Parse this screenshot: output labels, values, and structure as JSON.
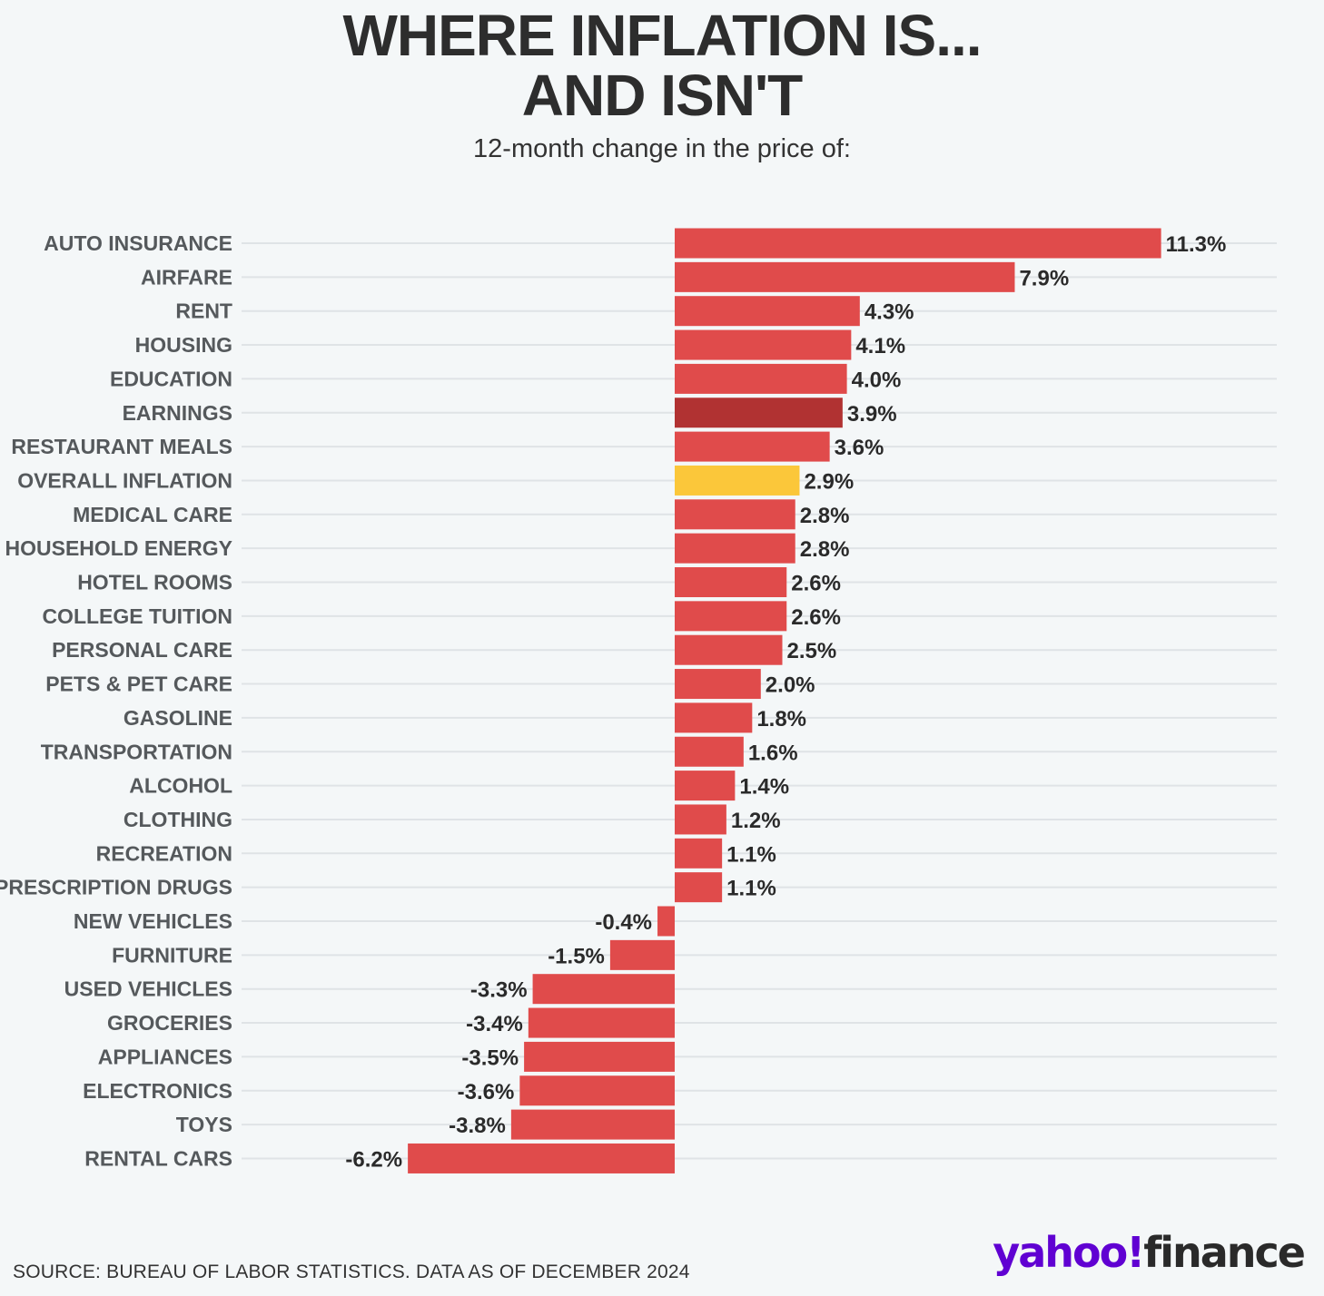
{
  "header": {
    "title_line1": "WHERE INFLATION IS...",
    "title_line2": "AND ISN'T",
    "subtitle": "12-month change in the price of:"
  },
  "footer": {
    "source": "SOURCE: BUREAU OF LABOR STATISTICS. DATA AS OF DECEMBER 2024",
    "logo_yahoo": "yahoo!",
    "logo_finance": "finance"
  },
  "colors": {
    "bar": "#e04b4b",
    "highlight_earnings": "#b13232",
    "highlight_overall": "#fbc73a",
    "gridline": "#dfe3e6"
  },
  "chart_data": {
    "type": "bar",
    "orientation": "horizontal",
    "title": "WHERE INFLATION IS... AND ISN'T",
    "subtitle": "12-month change in the price of:",
    "xlabel": "",
    "ylabel": "",
    "unit": "%",
    "xlim": [
      -6.2,
      11.3
    ],
    "categories": [
      "AUTO INSURANCE",
      "AIRFARE",
      "RENT",
      "HOUSING",
      "EDUCATION",
      "EARNINGS",
      "RESTAURANT MEALS",
      "OVERALL INFLATION",
      "MEDICAL CARE",
      "HOUSEHOLD ENERGY",
      "HOTEL ROOMS",
      "COLLEGE TUITION",
      "PERSONAL CARE",
      "PETS & PET CARE",
      "GASOLINE",
      "TRANSPORTATION",
      "ALCOHOL",
      "CLOTHING",
      "RECREATION",
      "PRESCRIPTION DRUGS",
      "NEW VEHICLES",
      "FURNITURE",
      "USED VEHICLES",
      "GROCERIES",
      "APPLIANCES",
      "ELECTRONICS",
      "TOYS",
      "RENTAL CARS"
    ],
    "values": [
      11.3,
      7.9,
      4.3,
      4.1,
      4.0,
      3.9,
      3.6,
      2.9,
      2.8,
      2.8,
      2.6,
      2.6,
      2.5,
      2.0,
      1.8,
      1.6,
      1.4,
      1.2,
      1.1,
      1.1,
      -0.4,
      -1.5,
      -3.3,
      -3.4,
      -3.5,
      -3.6,
      -3.8,
      -6.2
    ],
    "labels": [
      "11.3%",
      "7.9%",
      "4.3%",
      "4.1%",
      "4.0%",
      "3.9%",
      "3.6%",
      "2.9%",
      "2.8%",
      "2.8%",
      "2.6%",
      "2.6%",
      "2.5%",
      "2.0%",
      "1.8%",
      "1.6%",
      "1.4%",
      "1.2%",
      "1.1%",
      "1.1%",
      "-0.4%",
      "-1.5%",
      "-3.3%",
      "-3.4%",
      "-3.5%",
      "-3.6%",
      "-3.8%",
      "-6.2%"
    ],
    "highlights": {
      "EARNINGS": "highlight_earnings",
      "OVERALL INFLATION": "highlight_overall"
    },
    "grid": true
  }
}
